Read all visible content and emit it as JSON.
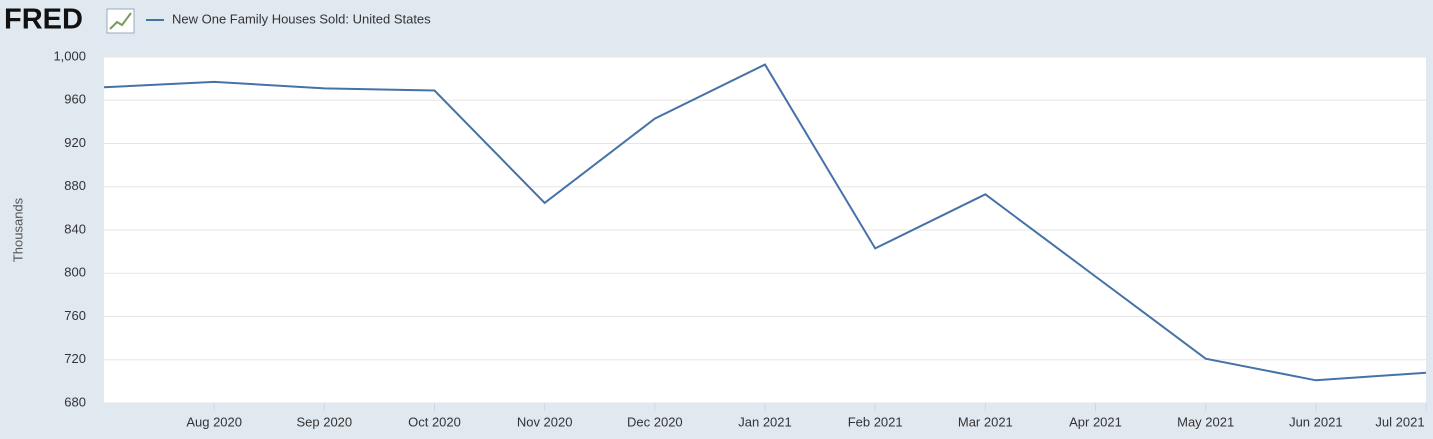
{
  "logo": "FRED",
  "chart_data": {
    "type": "line",
    "categories": [
      null,
      "Aug 2020",
      "Sep 2020",
      "Oct 2020",
      "Nov 2020",
      "Dec 2020",
      "Jan 2021",
      "Feb 2021",
      "Mar 2021",
      "Apr 2021",
      "May 2021",
      "Jun 2021",
      "Jul 2021"
    ],
    "series": [
      {
        "name": "New One Family Houses Sold: United States",
        "color": "#4572a7",
        "values": [
          972,
          977,
          971,
          969,
          865,
          943,
          993,
          823,
          873,
          797,
          721,
          701,
          708
        ]
      }
    ],
    "y_label": "Thousands",
    "ylim": [
      680,
      1000
    ],
    "yticks": [
      680,
      720,
      760,
      800,
      840,
      880,
      920,
      960,
      {
        "value": 1000,
        "label": "1,000"
      }
    ],
    "grid": true
  }
}
